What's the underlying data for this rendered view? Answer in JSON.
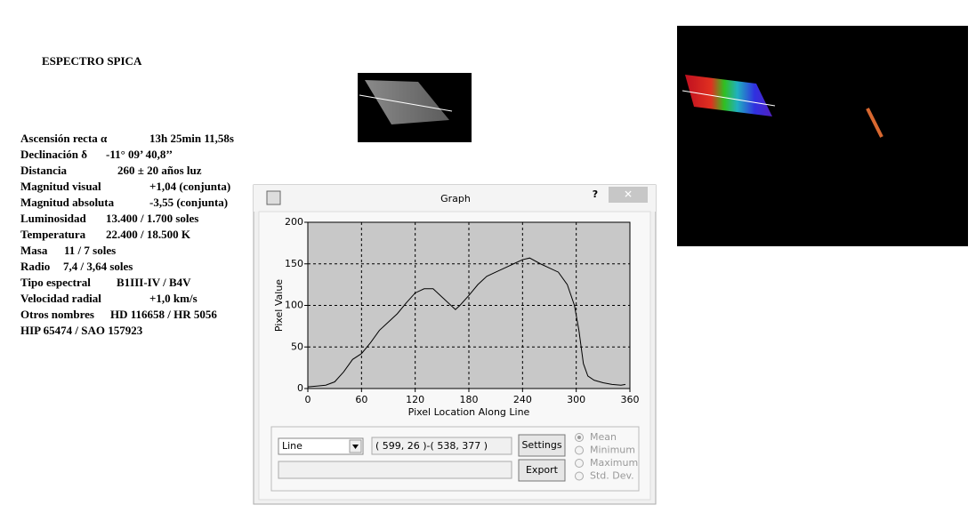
{
  "document": {
    "title": "ESPECTRO SPICA",
    "rows": [
      [
        "Ascensión recta α",
        "13h 25min 11,58s"
      ],
      [
        "Declinación δ",
        "-11° 09’ 40,8’’"
      ],
      [
        "Distancia",
        "260 ± 20 años luz"
      ],
      [
        "Magnitud visual",
        "+1,04 (conjunta)"
      ],
      [
        "Magnitud absoluta",
        "-3,55 (conjunta)"
      ],
      [
        "Luminosidad",
        "13.400 / 1.700 soles"
      ],
      [
        "Temperatura",
        "22.400 / 18.500 K"
      ],
      [
        "Masa",
        "11 / 7 soles"
      ],
      [
        "Radio",
        "7,4 / 3,64 soles"
      ],
      [
        "Tipo espectral",
        "B1III-IV / B4V"
      ],
      [
        "Velocidad radial",
        "+1,0 km/s"
      ],
      [
        "Otros nombres",
        "HD 116658 / HR 5056"
      ],
      [
        "HIP 65474 / SAO 157923",
        ""
      ]
    ]
  },
  "window": {
    "title": "Graph",
    "help": "?",
    "close": "✕",
    "dropdown": "Line",
    "coords": "( 599, 26 )-( 538, 377 )",
    "buttons": [
      "Settings",
      "Export"
    ],
    "radios": [
      "Mean",
      "Minimum",
      "Maximum",
      "Std. Dev."
    ]
  },
  "chart_data": {
    "type": "line",
    "x_label": "Pixel Location Along Line",
    "y_label": "Pixel Value",
    "x": [
      0,
      10,
      20,
      30,
      40,
      50,
      60,
      70,
      80,
      90,
      100,
      110,
      120,
      130,
      140,
      150,
      160,
      165,
      170,
      180,
      190,
      200,
      210,
      220,
      230,
      240,
      248,
      260,
      270,
      280,
      290,
      298,
      303,
      308,
      313,
      320,
      330,
      340,
      350,
      355
    ],
    "series": [
      {
        "name": "Pixel Value",
        "color": "#000000",
        "values": [
          2,
          3,
          4,
          8,
          20,
          35,
          42,
          55,
          70,
          80,
          90,
          103,
          115,
          120,
          120,
          110,
          100,
          95,
          100,
          112,
          125,
          135,
          140,
          145,
          150,
          155,
          157,
          150,
          145,
          140,
          125,
          100,
          70,
          30,
          15,
          10,
          7,
          5,
          4,
          5
        ]
      }
    ],
    "xlim": [
      0,
      360
    ],
    "ylim": [
      0,
      200
    ],
    "xticks": [
      0,
      60,
      120,
      180,
      240,
      300,
      360
    ],
    "yticks": [
      0,
      50,
      100,
      150,
      200
    ],
    "grid": true
  }
}
